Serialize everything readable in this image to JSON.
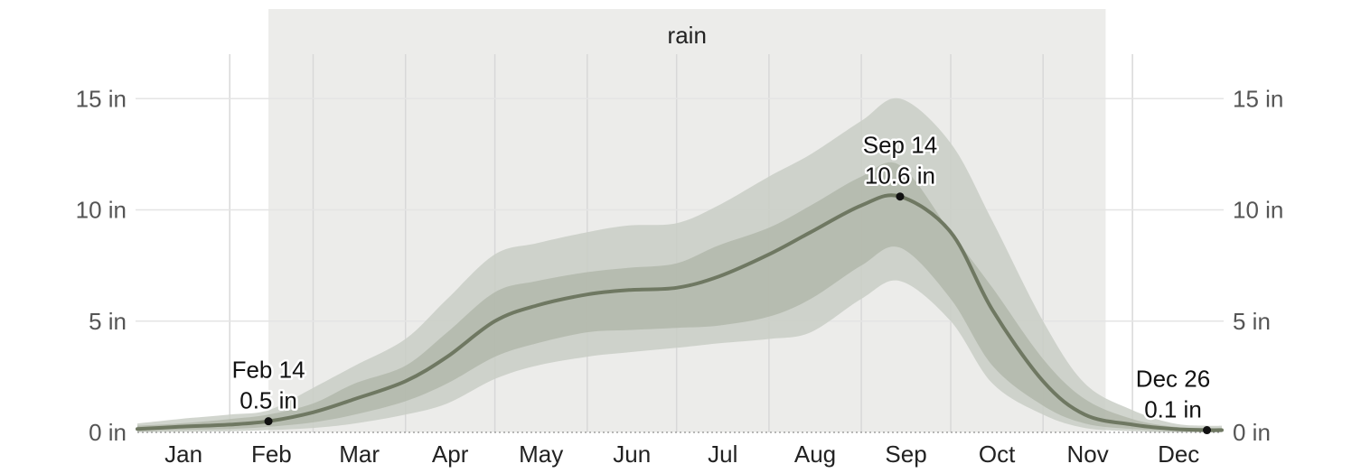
{
  "chart_data": {
    "type": "area",
    "season": {
      "label": "rain",
      "start": "Feb 14",
      "end": "Nov 22"
    },
    "months": [
      "Jan",
      "Feb",
      "Mar",
      "Apr",
      "May",
      "Jun",
      "Jul",
      "Aug",
      "Sep",
      "Oct",
      "Nov",
      "Dec"
    ],
    "y_unit": "in",
    "ylim": [
      0,
      17
    ],
    "y_ticks": [
      0,
      5,
      10,
      15
    ],
    "y_tick_labels": [
      "0 in",
      "5 in",
      "10 in",
      "15 in"
    ],
    "grid": true,
    "x": [
      "Jan 1",
      "Jan 15",
      "Feb 1",
      "Feb 14",
      "Mar 1",
      "Mar 15",
      "Apr 1",
      "Apr 15",
      "May 1",
      "May 15",
      "Jun 1",
      "Jun 15",
      "Jul 1",
      "Jul 15",
      "Aug 1",
      "Aug 15",
      "Sep 1",
      "Sep 14",
      "Oct 1",
      "Oct 15",
      "Nov 1",
      "Nov 15",
      "Dec 1",
      "Dec 15",
      "Dec 26",
      "Dec 31"
    ],
    "series": [
      {
        "role": "p90",
        "values": [
          0.4,
          0.6,
          0.8,
          1.0,
          2.0,
          3.0,
          4.2,
          6.0,
          8.0,
          8.5,
          9.0,
          9.3,
          9.4,
          10.2,
          11.5,
          12.5,
          14.0,
          15.0,
          13.0,
          9.5,
          5.0,
          2.2,
          1.0,
          0.4,
          0.3,
          0.3
        ]
      },
      {
        "role": "p75",
        "values": [
          0.3,
          0.4,
          0.6,
          0.8,
          1.3,
          2.2,
          3.0,
          4.5,
          6.3,
          6.8,
          7.2,
          7.4,
          7.6,
          8.4,
          9.2,
          10.2,
          11.5,
          12.0,
          9.0,
          6.5,
          3.3,
          1.5,
          0.6,
          0.25,
          0.2,
          0.2
        ]
      },
      {
        "role": "median",
        "values": [
          0.15,
          0.25,
          0.35,
          0.5,
          0.9,
          1.5,
          2.3,
          3.4,
          5.0,
          5.7,
          6.2,
          6.4,
          6.5,
          7.0,
          8.0,
          9.0,
          10.2,
          10.6,
          9.0,
          5.5,
          2.3,
          0.8,
          0.35,
          0.15,
          0.1,
          0.1
        ]
      },
      {
        "role": "p25",
        "values": [
          0.05,
          0.1,
          0.15,
          0.25,
          0.45,
          0.8,
          1.4,
          2.2,
          3.4,
          4.0,
          4.5,
          4.6,
          4.7,
          4.8,
          5.2,
          6.0,
          7.5,
          8.3,
          6.0,
          3.0,
          1.2,
          0.4,
          0.15,
          0.06,
          0.04,
          0.04
        ]
      },
      {
        "role": "p10",
        "values": [
          0.0,
          0.02,
          0.05,
          0.1,
          0.2,
          0.4,
          0.8,
          1.3,
          2.4,
          3.0,
          3.4,
          3.6,
          3.8,
          4.0,
          4.2,
          4.5,
          6.0,
          6.8,
          5.0,
          2.2,
          0.8,
          0.2,
          0.05,
          0.0,
          0.0,
          0.0
        ]
      }
    ],
    "annotations": [
      {
        "date": "Feb 14",
        "value": "0.5 in",
        "y": 0.5
      },
      {
        "date": "Sep 14",
        "value": "10.6 in",
        "y": 10.6
      },
      {
        "date": "Dec 26",
        "value": "0.1 in",
        "y": 0.1
      }
    ],
    "colors": {
      "season_band": "#ececea",
      "band_outer": "#c9cec6",
      "band_inner": "#a7ae9f",
      "median_line": "#6f7862",
      "grid": "#d8d8d8"
    }
  }
}
